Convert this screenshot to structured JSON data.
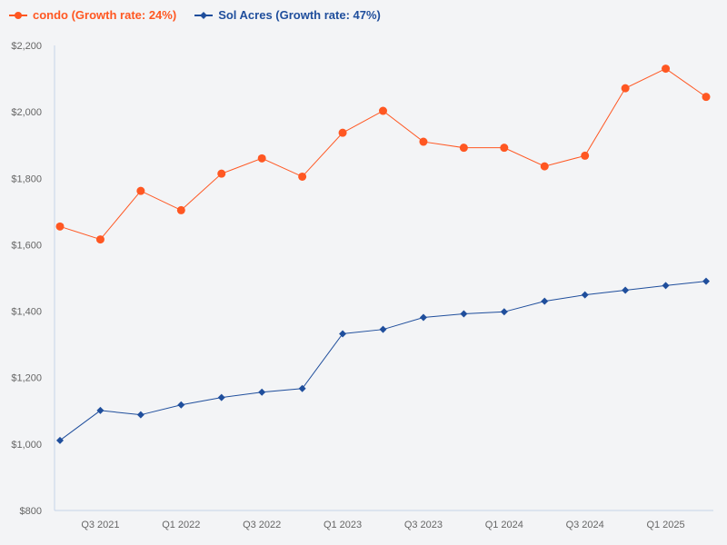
{
  "chart_data": {
    "type": "line",
    "title": "",
    "xlabel": "",
    "ylabel": "",
    "ylim": [
      800,
      2200
    ],
    "y_ticks": [
      "$800",
      "$1,000",
      "$1,200",
      "$1,400",
      "$1,600",
      "$1,800",
      "$2,000",
      "$2,200"
    ],
    "y_tick_values": [
      800,
      1000,
      1200,
      1400,
      1600,
      1800,
      2000,
      2200
    ],
    "categories": [
      "Q2 2021",
      "Q3 2021",
      "Q4 2021",
      "Q1 2022",
      "Q2 2022",
      "Q3 2022",
      "Q4 2022",
      "Q1 2023",
      "Q2 2023",
      "Q3 2023",
      "Q4 2023",
      "Q1 2024",
      "Q2 2024",
      "Q3 2024",
      "Q4 2024",
      "Q1 2025",
      "Q2 2025"
    ],
    "x_tick_labels": [
      "Q3 2021",
      "Q1 2022",
      "Q3 2022",
      "Q1 2023",
      "Q3 2023",
      "Q1 2024",
      "Q3 2024",
      "Q1 2025"
    ],
    "grid": false,
    "legend_position": "top-left",
    "series": [
      {
        "name": "condo (Growth rate: 24%)",
        "color": "#ff5722",
        "marker": "circle",
        "values": [
          1655,
          1616,
          1762,
          1704,
          1814,
          1860,
          1805,
          1937,
          2003,
          1910,
          1892,
          1892,
          1836,
          1868,
          2071,
          2130,
          2045
        ]
      },
      {
        "name": "Sol Acres (Growth rate: 47%)",
        "color": "#1f4e9c",
        "marker": "diamond",
        "values": [
          1011,
          1101,
          1088,
          1118,
          1140,
          1156,
          1167,
          1332,
          1345,
          1381,
          1392,
          1398,
          1430,
          1449,
          1463,
          1477,
          1490
        ]
      }
    ]
  }
}
